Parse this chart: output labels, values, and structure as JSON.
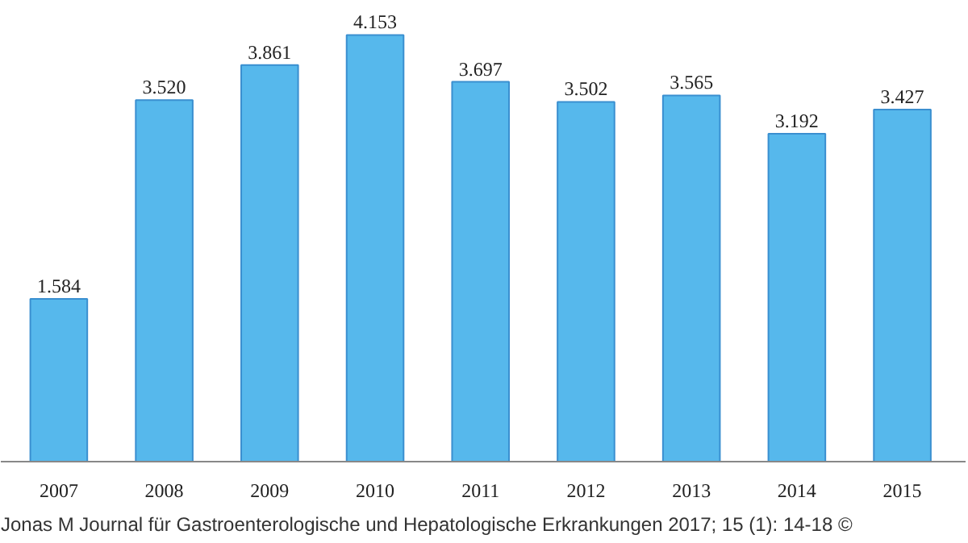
{
  "chart_data": {
    "type": "bar",
    "categories": [
      "2007",
      "2008",
      "2009",
      "2010",
      "2011",
      "2012",
      "2013",
      "2014",
      "2015"
    ],
    "values": [
      1584,
      3520,
      3861,
      4153,
      3697,
      3502,
      3565,
      3192,
      3427
    ],
    "value_labels": [
      "1.584",
      "3.520",
      "3.861",
      "4.153",
      "3.697",
      "3.502",
      "3.565",
      "3.192",
      "3.427"
    ],
    "color": "#56b8ec",
    "tick_labels": "x",
    "grid": false,
    "annotations": [
      "Jonas M Journal für Gastroenterologische und Hepatologische Erkrankungen 2017; 15 (1): 14-18 ©"
    ]
  }
}
